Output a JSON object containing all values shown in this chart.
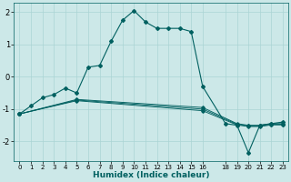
{
  "xlabel": "Humidex (Indice chaleur)",
  "bg_color": "#cce8e8",
  "line_color": "#006060",
  "grid_color": "#aad4d4",
  "ylim": [
    -2.6,
    2.3
  ],
  "xlim": [
    -0.5,
    23.5
  ],
  "yticks": [
    -2,
    -1,
    0,
    1,
    2
  ],
  "xticks": [
    0,
    1,
    2,
    3,
    4,
    5,
    6,
    7,
    8,
    9,
    10,
    11,
    12,
    13,
    14,
    15,
    16,
    18,
    19,
    20,
    21,
    22,
    23
  ],
  "main_x": [
    0,
    1,
    2,
    3,
    4,
    5,
    6,
    7,
    8,
    9,
    10,
    11,
    12,
    13,
    14,
    15,
    16,
    18,
    19,
    20,
    21,
    22,
    23
  ],
  "main_y": [
    -1.15,
    -0.9,
    -0.65,
    -0.55,
    -0.35,
    -0.5,
    0.3,
    0.35,
    1.1,
    1.75,
    2.05,
    1.7,
    1.5,
    1.5,
    1.5,
    1.4,
    -0.3,
    -1.45,
    -1.5,
    -2.35,
    -1.5,
    -1.45,
    -1.4
  ],
  "diag_lines": [
    {
      "x": [
        0,
        5,
        16,
        19,
        20,
        21,
        22,
        23
      ],
      "y": [
        -1.15,
        -0.7,
        -0.95,
        -1.45,
        -1.5,
        -1.5,
        -1.45,
        -1.45
      ]
    },
    {
      "x": [
        0,
        5,
        16,
        19,
        20,
        21,
        22,
        23
      ],
      "y": [
        -1.15,
        -0.72,
        -1.0,
        -1.47,
        -1.52,
        -1.52,
        -1.47,
        -1.47
      ]
    },
    {
      "x": [
        0,
        5,
        16,
        19,
        20,
        21,
        22,
        23
      ],
      "y": [
        -1.15,
        -0.74,
        -1.05,
        -1.49,
        -1.54,
        -1.54,
        -1.49,
        -1.49
      ]
    }
  ]
}
